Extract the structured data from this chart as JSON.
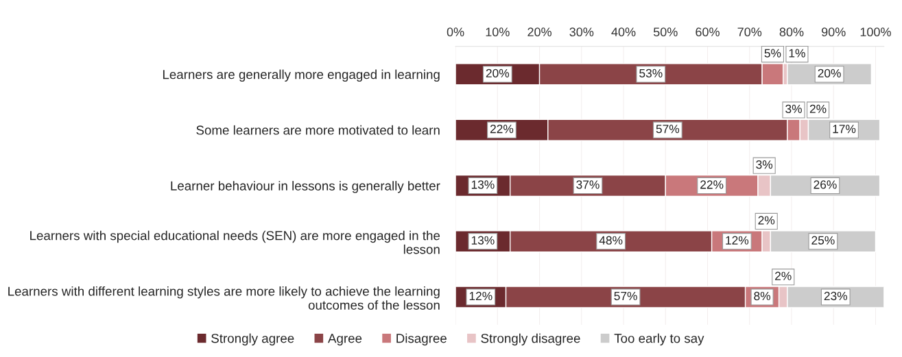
{
  "chart_data": {
    "type": "bar",
    "orientation": "horizontal",
    "stacked": true,
    "grid": "x",
    "legend": "bottom",
    "categories": [
      "Learners are generally more engaged in learning",
      "Some learners are more motivated to learn",
      "Learner behaviour in lessons is generally better",
      "Learners with special educational needs (SEN) are more engaged in the lesson",
      "Learners with different learning styles are more likely to achieve the learning outcomes of the lesson"
    ],
    "series": [
      {
        "name": "Strongly agree",
        "color": "#6b2a2e",
        "values": [
          20,
          22,
          13,
          13,
          12
        ],
        "value_labels": [
          "20%",
          "22%",
          "13%",
          "13%",
          "12%"
        ]
      },
      {
        "name": "Agree",
        "color": "#8b4447",
        "values": [
          53,
          57,
          37,
          48,
          57
        ],
        "value_labels": [
          "53%",
          "57%",
          "37%",
          "48%",
          "57%"
        ]
      },
      {
        "name": "Disagree",
        "color": "#c9787b",
        "values": [
          5,
          3,
          22,
          12,
          8
        ],
        "value_labels": [
          "5%",
          "3%",
          "22%",
          "12%",
          "8%"
        ]
      },
      {
        "name": "Strongly disagree",
        "color": "#e8c4c6",
        "values": [
          1,
          2,
          3,
          2,
          2
        ],
        "value_labels": [
          "1%",
          "2%",
          "3%",
          "2%",
          "2%"
        ]
      },
      {
        "name": "Too early to say",
        "color": "#cccccc",
        "values": [
          20,
          17,
          26,
          25,
          23
        ],
        "value_labels": [
          "20%",
          "17%",
          "26%",
          "25%",
          "23%"
        ]
      }
    ],
    "xlim": [
      0,
      102
    ],
    "xticks": [
      {
        "value": 0,
        "label": "0%"
      },
      {
        "value": 10,
        "label": "10%"
      },
      {
        "value": 20,
        "label": "20%"
      },
      {
        "value": 30,
        "label": "30%"
      },
      {
        "value": 40,
        "label": "40%"
      },
      {
        "value": 50,
        "label": "50%"
      },
      {
        "value": 60,
        "label": "60%"
      },
      {
        "value": 70,
        "label": "70%"
      },
      {
        "value": 80,
        "label": "80%"
      },
      {
        "value": 90,
        "label": "90%"
      },
      {
        "value": 100,
        "label": "100%"
      }
    ]
  }
}
